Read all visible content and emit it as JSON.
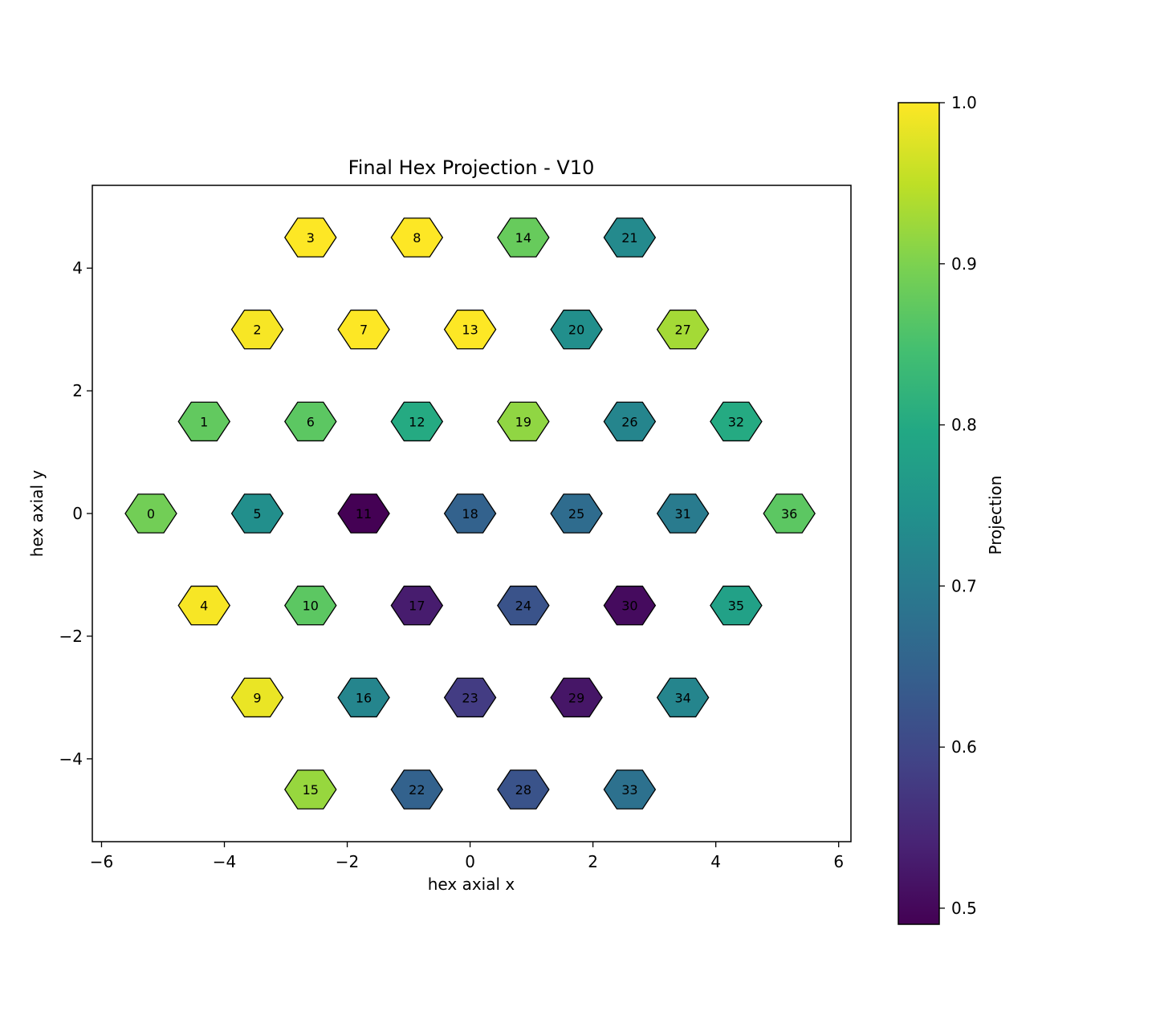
{
  "chart_data": {
    "type": "scatter",
    "marker": "hexagon",
    "title": "Final Hex Projection - V10",
    "xlabel": "hex axial x",
    "ylabel": "hex axial y",
    "xlim": [
      -6.15,
      6.2
    ],
    "ylim": [
      -5.35,
      5.35
    ],
    "xticks": [
      -6,
      -4,
      -2,
      0,
      2,
      4,
      6
    ],
    "yticks": [
      -4,
      -2,
      0,
      2,
      4
    ],
    "xtick_labels": [
      "−6",
      "−4",
      "−2",
      "0",
      "2",
      "4",
      "6"
    ],
    "ytick_labels": [
      "−4",
      "−2",
      "0",
      "2",
      "4"
    ],
    "colorbar": {
      "label": "Projection",
      "colormap": "viridis",
      "range": [
        0.49,
        1.0
      ],
      "ticks": [
        0.5,
        0.6,
        0.7,
        0.8,
        0.9,
        1.0
      ],
      "tick_labels": [
        "0.5",
        "0.6",
        "0.7",
        "0.8",
        "0.9",
        "1.0"
      ]
    },
    "points": [
      {
        "id": "0",
        "x": -5.196,
        "y": 0.0,
        "value": 0.89
      },
      {
        "id": "1",
        "x": -4.33,
        "y": 1.5,
        "value": 0.875
      },
      {
        "id": "2",
        "x": -3.464,
        "y": 3.0,
        "value": 0.995
      },
      {
        "id": "3",
        "x": -2.598,
        "y": 4.5,
        "value": 1.0
      },
      {
        "id": "4",
        "x": -4.33,
        "y": -1.5,
        "value": 0.995
      },
      {
        "id": "5",
        "x": -3.464,
        "y": 0.0,
        "value": 0.74
      },
      {
        "id": "6",
        "x": -2.598,
        "y": 1.5,
        "value": 0.87
      },
      {
        "id": "7",
        "x": -1.732,
        "y": 3.0,
        "value": 1.0
      },
      {
        "id": "8",
        "x": -0.866,
        "y": 4.5,
        "value": 1.0
      },
      {
        "id": "9",
        "x": -3.464,
        "y": -3.0,
        "value": 0.985
      },
      {
        "id": "10",
        "x": -2.598,
        "y": -1.5,
        "value": 0.87
      },
      {
        "id": "11",
        "x": -1.732,
        "y": 0.0,
        "value": 0.49
      },
      {
        "id": "12",
        "x": -0.866,
        "y": 1.5,
        "value": 0.8
      },
      {
        "id": "13",
        "x": 0.0,
        "y": 3.0,
        "value": 1.0
      },
      {
        "id": "14",
        "x": 0.866,
        "y": 4.5,
        "value": 0.88
      },
      {
        "id": "15",
        "x": -2.598,
        "y": -4.5,
        "value": 0.92
      },
      {
        "id": "16",
        "x": -1.732,
        "y": -3.0,
        "value": 0.72
      },
      {
        "id": "17",
        "x": -0.866,
        "y": -1.5,
        "value": 0.53
      },
      {
        "id": "18",
        "x": 0.0,
        "y": 0.0,
        "value": 0.65
      },
      {
        "id": "19",
        "x": 0.866,
        "y": 1.5,
        "value": 0.915
      },
      {
        "id": "20",
        "x": 1.732,
        "y": 3.0,
        "value": 0.74
      },
      {
        "id": "21",
        "x": 2.598,
        "y": 4.5,
        "value": 0.73
      },
      {
        "id": "22",
        "x": -0.866,
        "y": -4.5,
        "value": 0.65
      },
      {
        "id": "23",
        "x": 0.0,
        "y": -3.0,
        "value": 0.58
      },
      {
        "id": "24",
        "x": 0.866,
        "y": -1.5,
        "value": 0.62
      },
      {
        "id": "25",
        "x": 1.732,
        "y": 0.0,
        "value": 0.67
      },
      {
        "id": "26",
        "x": 2.598,
        "y": 1.5,
        "value": 0.72
      },
      {
        "id": "27",
        "x": 3.464,
        "y": 3.0,
        "value": 0.93
      },
      {
        "id": "28",
        "x": 0.866,
        "y": -4.5,
        "value": 0.62
      },
      {
        "id": "29",
        "x": 1.732,
        "y": -3.0,
        "value": 0.52
      },
      {
        "id": "30",
        "x": 2.598,
        "y": -1.5,
        "value": 0.505
      },
      {
        "id": "31",
        "x": 3.464,
        "y": 0.0,
        "value": 0.7
      },
      {
        "id": "32",
        "x": 4.33,
        "y": 1.5,
        "value": 0.8
      },
      {
        "id": "33",
        "x": 2.598,
        "y": -4.5,
        "value": 0.68
      },
      {
        "id": "34",
        "x": 3.464,
        "y": -3.0,
        "value": 0.72
      },
      {
        "id": "35",
        "x": 4.33,
        "y": -1.5,
        "value": 0.78
      },
      {
        "id": "36",
        "x": 5.196,
        "y": 0.0,
        "value": 0.87
      }
    ]
  }
}
